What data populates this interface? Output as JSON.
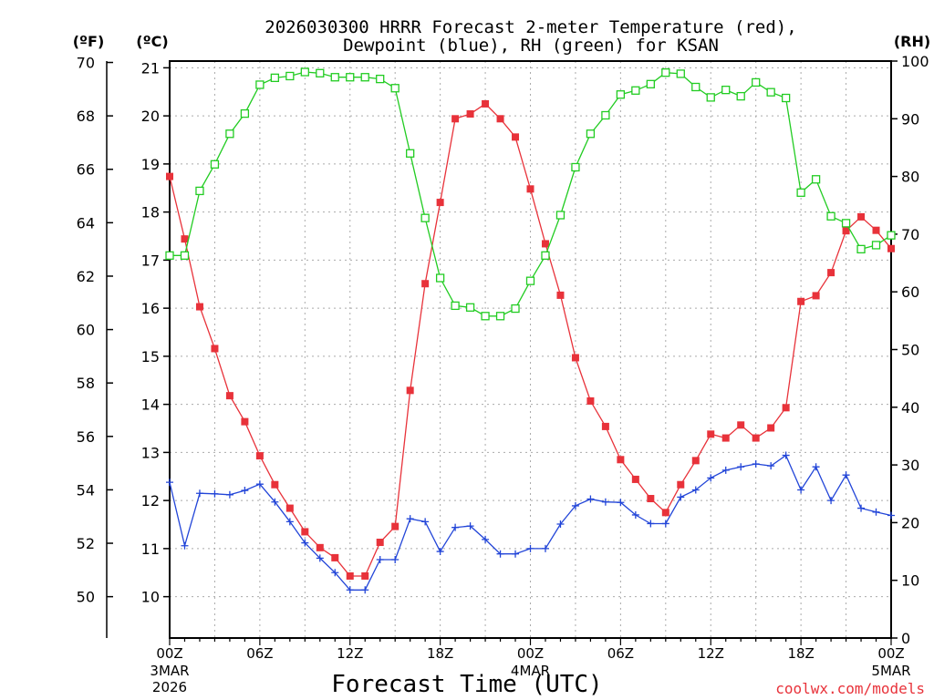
{
  "chart_data": {
    "type": "line",
    "title_line1": "2026030300 HRRR Forecast 2-meter Temperature (red),",
    "title_line2": "Dewpoint (blue), RH (green) for KSAN",
    "xlabel": "Forecast Time (UTC)",
    "credit": "coolwx.com/models",
    "unit_f": "(ºF)",
    "unit_c": "(ºC)",
    "unit_rh": "(RH)",
    "x_ticks": [
      {
        "hour": 0,
        "label1": "00Z",
        "label2": "3MAR",
        "label3": "2026"
      },
      {
        "hour": 6,
        "label1": "06Z"
      },
      {
        "hour": 12,
        "label1": "12Z"
      },
      {
        "hour": 18,
        "label1": "18Z"
      },
      {
        "hour": 24,
        "label1": "00Z",
        "label2": "4MAR"
      },
      {
        "hour": 30,
        "label1": "06Z"
      },
      {
        "hour": 36,
        "label1": "12Z"
      },
      {
        "hour": 42,
        "label1": "18Z"
      },
      {
        "hour": 48,
        "label1": "00Z",
        "label2": "5MAR"
      }
    ],
    "c_ticks": [
      "10",
      "11",
      "12",
      "13",
      "14",
      "15",
      "16",
      "17",
      "18",
      "19",
      "20",
      "21"
    ],
    "f_ticks": [
      "50",
      "52",
      "54",
      "56",
      "58",
      "60",
      "62",
      "64",
      "66",
      "68",
      "70"
    ],
    "rh_ticks": [
      "0",
      "10",
      "20",
      "30",
      "40",
      "50",
      "60",
      "70",
      "80",
      "90",
      "100"
    ],
    "ylim_c": [
      9.14,
      21.14
    ],
    "ylim_rh": [
      0,
      100
    ],
    "x_hours": [
      0,
      1,
      2,
      3,
      4,
      5,
      6,
      7,
      8,
      9,
      10,
      11,
      12,
      13,
      14,
      15,
      16,
      17,
      18,
      19,
      20,
      21,
      22,
      23,
      24,
      25,
      26,
      27,
      28,
      29,
      30,
      31,
      32,
      33,
      34,
      35,
      36,
      37,
      38,
      39,
      40,
      41,
      42,
      43,
      44,
      45,
      46,
      47,
      48
    ],
    "series": [
      {
        "name": "Temperature",
        "color": "#e8323a",
        "marker": "filled-square",
        "axis": "celsius",
        "values": [
          18.74,
          17.44,
          16.03,
          15.16,
          14.18,
          13.64,
          12.93,
          12.33,
          11.84,
          11.35,
          11.02,
          10.81,
          10.43,
          10.43,
          11.13,
          11.46,
          14.29,
          16.51,
          18.2,
          19.94,
          20.04,
          20.25,
          19.94,
          19.56,
          18.48,
          17.34,
          16.27,
          14.97,
          14.07,
          13.54,
          12.85,
          12.44,
          12.04,
          11.75,
          12.33,
          12.83,
          13.38,
          13.3,
          13.57,
          13.3,
          13.51,
          13.93,
          16.14,
          16.26,
          16.74,
          17.61,
          17.9,
          17.62,
          17.24
        ]
      },
      {
        "name": "Dewpoint",
        "color": "#2245d8",
        "marker": "plus",
        "axis": "celsius",
        "values": [
          12.38,
          11.06,
          12.15,
          12.14,
          12.12,
          12.21,
          12.34,
          11.97,
          11.56,
          11.12,
          10.8,
          10.5,
          10.14,
          10.14,
          10.77,
          10.77,
          11.62,
          11.56,
          10.94,
          11.44,
          11.47,
          11.19,
          10.89,
          10.89,
          11.0,
          11.0,
          11.51,
          11.89,
          12.03,
          11.97,
          11.96,
          11.7,
          11.52,
          11.52,
          12.07,
          12.22,
          12.47,
          12.63,
          12.7,
          12.76,
          12.72,
          12.94,
          12.22,
          12.7,
          12.0,
          12.53,
          11.84,
          11.76,
          11.69
        ]
      },
      {
        "name": "RH",
        "color": "#22cc22",
        "marker": "open-square",
        "axis": "rh",
        "values": [
          66.3,
          66.3,
          77.5,
          82.1,
          87.4,
          90.9,
          95.9,
          97.1,
          97.4,
          98.1,
          97.9,
          97.2,
          97.2,
          97.2,
          96.9,
          95.3,
          84.0,
          72.8,
          62.4,
          57.6,
          57.3,
          55.8,
          55.8,
          57.1,
          61.9,
          66.3,
          73.3,
          81.6,
          87.4,
          90.6,
          94.2,
          94.9,
          96.0,
          98.0,
          97.8,
          95.5,
          93.7,
          95.0,
          93.9,
          96.3,
          94.6,
          93.6,
          77.2,
          79.5,
          73.1,
          71.9,
          67.4,
          68.1,
          69.8
        ]
      }
    ]
  }
}
